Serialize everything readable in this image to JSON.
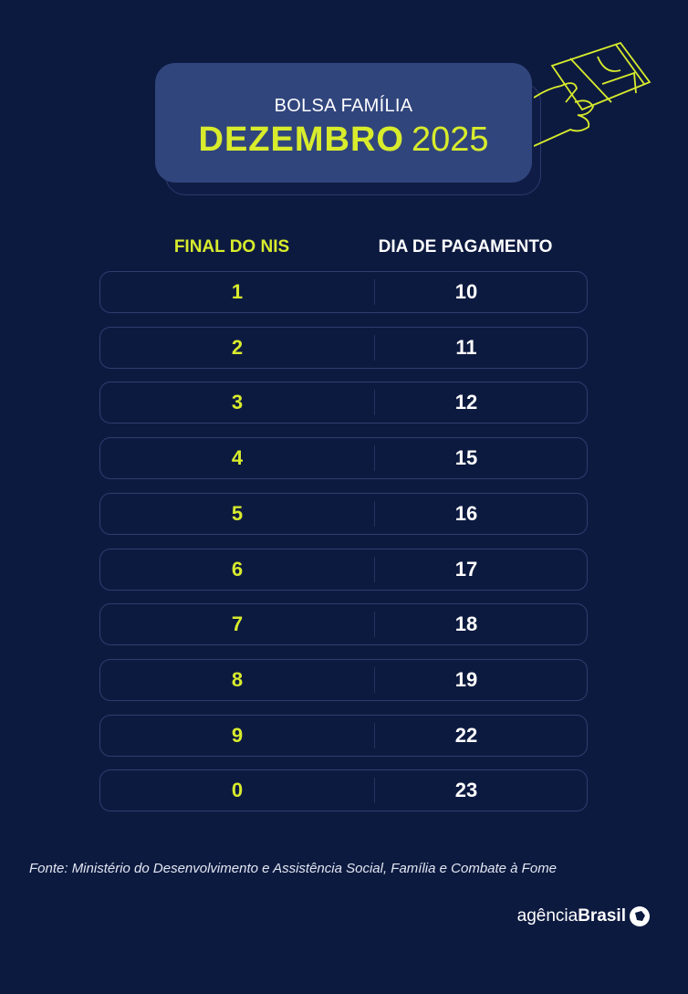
{
  "header": {
    "subtitle": "BOLSA FAMÍLIA",
    "month": "DEZEMBRO",
    "year": "2025"
  },
  "table": {
    "headers": [
      "FINAL DO NIS",
      "DIA DE PAGAMENTO"
    ],
    "rows": [
      {
        "nis": "1",
        "day": "10"
      },
      {
        "nis": "2",
        "day": "11"
      },
      {
        "nis": "3",
        "day": "12"
      },
      {
        "nis": "4",
        "day": "15"
      },
      {
        "nis": "5",
        "day": "16"
      },
      {
        "nis": "6",
        "day": "17"
      },
      {
        "nis": "7",
        "day": "18"
      },
      {
        "nis": "8",
        "day": "19"
      },
      {
        "nis": "9",
        "day": "22"
      },
      {
        "nis": "0",
        "day": "23"
      }
    ]
  },
  "source": "Fonte: Ministério do Desenvolvimento e Assistência Social, Família e Combate à Fome",
  "logo": {
    "light": "agência",
    "bold": "Brasil"
  },
  "colors": {
    "background": "#0d1a40",
    "accent": "#d8ec2c",
    "panel": "#31457d"
  }
}
